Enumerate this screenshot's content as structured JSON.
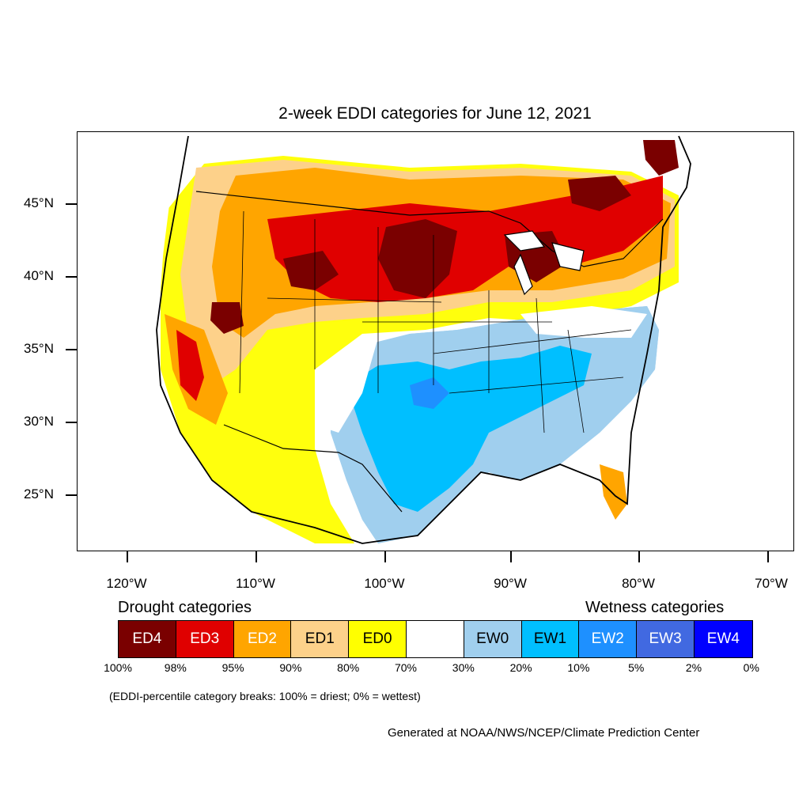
{
  "title": "2-week EDDI categories for June 12, 2021",
  "y_axis": {
    "ticks": [
      "45°N",
      "40°N",
      "35°N",
      "30°N",
      "25°N"
    ]
  },
  "x_axis": {
    "ticks": [
      "120°W",
      "110°W",
      "100°W",
      "90°W",
      "80°W",
      "70°W"
    ]
  },
  "legend": {
    "drought_heading": "Drought categories",
    "wetness_heading": "Wetness categories",
    "categories": [
      {
        "label": "ED4",
        "color": "#7a0000",
        "text_color": "#ffffff"
      },
      {
        "label": "ED3",
        "color": "#e00000",
        "text_color": "#ffffff"
      },
      {
        "label": "ED2",
        "color": "#ffa500",
        "text_color": "#ffffff"
      },
      {
        "label": "ED1",
        "color": "#fdd18a",
        "text_color": "#000000"
      },
      {
        "label": "ED0",
        "color": "#ffff00",
        "text_color": "#000000"
      },
      {
        "label": "",
        "color": "#ffffff",
        "text_color": "#000000"
      },
      {
        "label": "EW0",
        "color": "#a0cfee",
        "text_color": "#000000"
      },
      {
        "label": "EW1",
        "color": "#00bfff",
        "text_color": "#000000"
      },
      {
        "label": "EW2",
        "color": "#1e90ff",
        "text_color": "#ffffff"
      },
      {
        "label": "EW3",
        "color": "#4169e1",
        "text_color": "#ffffff"
      },
      {
        "label": "EW4",
        "color": "#0000ff",
        "text_color": "#ffffff"
      }
    ],
    "percentiles": [
      "100%",
      "98%",
      "95%",
      "90%",
      "80%",
      "70%",
      "30%",
      "20%",
      "10%",
      "5%",
      "2%",
      "0%"
    ]
  },
  "note": "(EDDI-percentile category breaks: 100% = driest; 0% = wettest)",
  "credit": "Generated at NOAA/NWS/NCEP/Climate Prediction Center"
}
